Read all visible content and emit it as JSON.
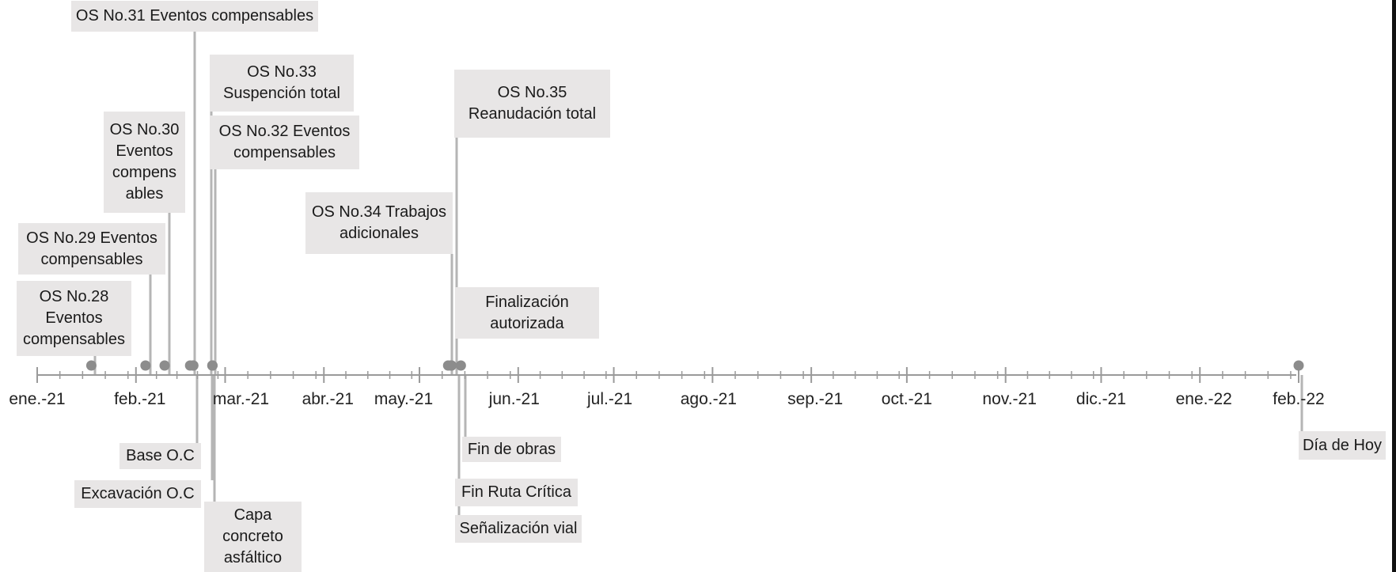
{
  "colors": {
    "axis": "#9a9a9a",
    "marker": "#8c8c8c",
    "connector": "#b5b5b5",
    "box": "#e8e6e6",
    "text": "#1a1a1a",
    "right_border": "#111111"
  },
  "axis": {
    "start": "2021-01-01",
    "end": "2022-02-01",
    "month_labels": [
      "ene.-21",
      "feb.-21",
      "mar.-21",
      "abr.-21",
      "may.-21",
      "jun.-21",
      "jul.-21",
      "ago.-21",
      "sep.-21",
      "oct.-21",
      "nov.-21",
      "dic.-21",
      "ene.-22",
      "feb.-22"
    ]
  },
  "events": [
    {
      "label": "OS No.28\nEventos\ncompensables",
      "date": "2021-01-18",
      "side": "above"
    },
    {
      "label": "OS No.29 Eventos\ncompensables",
      "date": "2021-02-04",
      "side": "above"
    },
    {
      "label": "OS No.30\nEventos\ncompens\nables",
      "date": "2021-02-10",
      "side": "above"
    },
    {
      "label": "OS No.31 Eventos compensables",
      "date": "2021-02-18",
      "side": "above"
    },
    {
      "label": "OS No.32 Eventos\ncompensables",
      "date": "2021-02-25",
      "side": "above"
    },
    {
      "label": "OS No.33\nSuspención total",
      "date": "2021-02-25",
      "side": "above"
    },
    {
      "label": "OS No.34 Trabajos\nadicionales",
      "date": "2021-05-10",
      "side": "above"
    },
    {
      "label": "OS No.35\nReanudación total",
      "date": "2021-05-11",
      "side": "above"
    },
    {
      "label": "Finalización\nautorizada",
      "date": "2021-05-11",
      "side": "above"
    },
    {
      "label": "Base O.C",
      "date": "2021-02-19",
      "side": "below"
    },
    {
      "label": "Excavación O.C",
      "date": "2021-02-19",
      "side": "below"
    },
    {
      "label": "Capa\nconcreto\nasfáltico",
      "date": "2021-02-25",
      "side": "below"
    },
    {
      "label": "Fin Ruta Crítica",
      "date": "2021-05-11",
      "side": "below"
    },
    {
      "label": "Señalización vial",
      "date": "2021-05-11",
      "side": "below"
    },
    {
      "label": "Fin de obras",
      "date": "2021-05-14",
      "side": "below"
    },
    {
      "label": "Día de Hoy",
      "date": "2022-02-01",
      "side": "below"
    }
  ]
}
